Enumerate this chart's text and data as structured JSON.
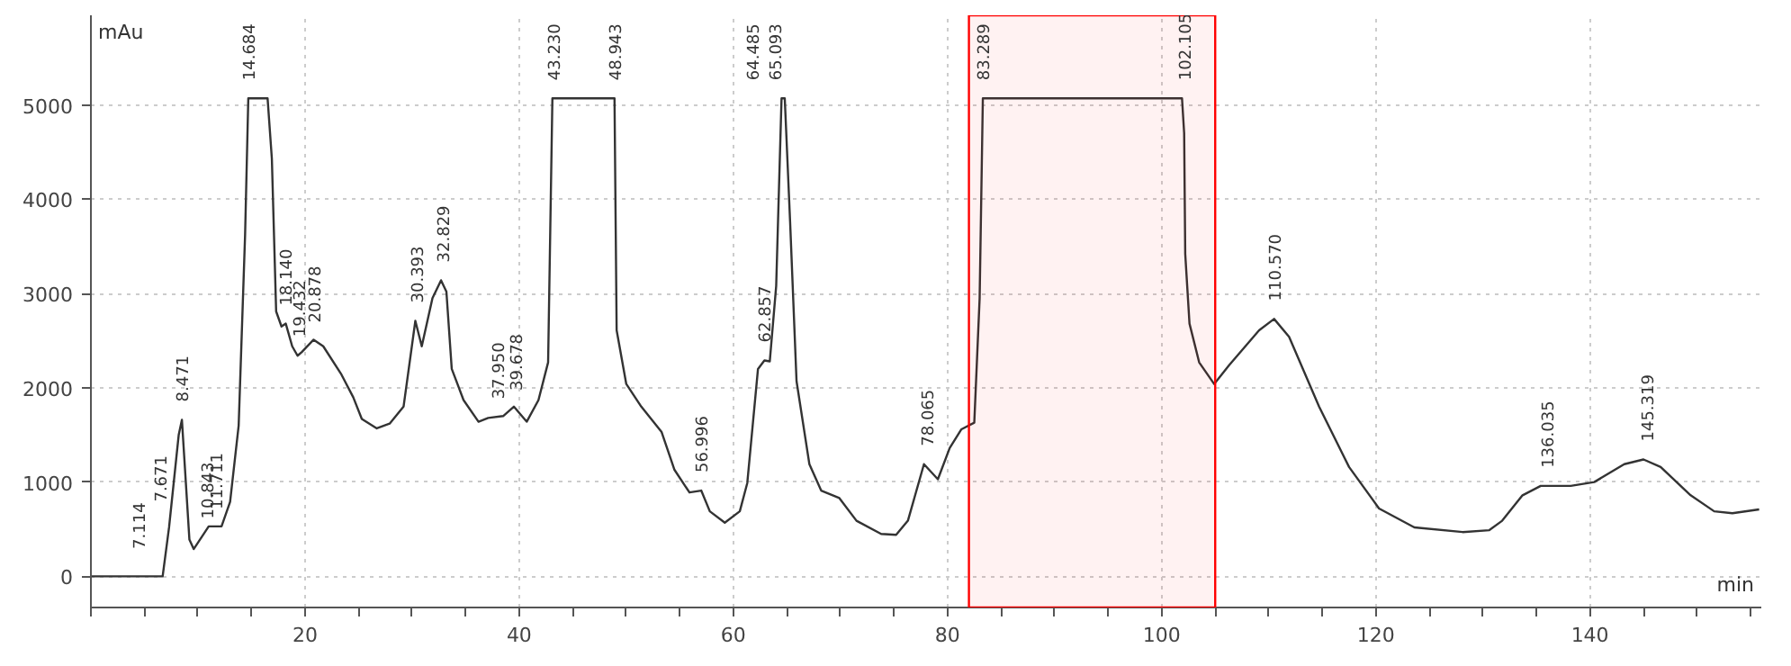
{
  "chart_data": {
    "type": "line",
    "xlabel": "min",
    "ylabel": "mAu",
    "xlim": [
      0,
      156
    ],
    "ylim": [
      -330,
      5950
    ],
    "xticks": [
      {
        "value": 0,
        "label": null
      },
      {
        "value": 5,
        "label": null
      },
      {
        "value": 10,
        "label": null
      },
      {
        "value": 15,
        "label": null
      },
      20,
      {
        "value": 25,
        "label": null
      },
      {
        "value": 30,
        "label": null
      },
      {
        "value": 35,
        "label": null
      },
      40,
      {
        "value": 45,
        "label": null
      },
      {
        "value": 50,
        "label": null
      },
      {
        "value": 55,
        "label": null
      },
      60,
      {
        "value": 65,
        "label": null
      },
      {
        "value": 70,
        "label": null
      },
      {
        "value": 75,
        "label": null
      },
      80,
      {
        "value": 85,
        "label": null
      },
      {
        "value": 90,
        "label": null
      },
      {
        "value": 95,
        "label": null
      },
      100,
      {
        "value": 105,
        "label": null
      },
      {
        "value": 110,
        "label": null
      },
      {
        "value": 115,
        "label": null
      },
      120,
      {
        "value": 125,
        "label": null
      },
      {
        "value": 130,
        "label": null
      },
      {
        "value": 135,
        "label": null
      },
      140,
      {
        "value": 145,
        "label": null
      },
      {
        "value": 150,
        "label": null
      },
      {
        "value": 155,
        "label": null
      }
    ],
    "yticks": [
      0,
      1000,
      2000,
      3000,
      4000,
      5000
    ],
    "grid": true,
    "marker": "none",
    "line_style": "solid",
    "series": [
      {
        "color": "#333333",
        "x": [
          0,
          6.7,
          7.3,
          8.2,
          8.5,
          9.2,
          9.6,
          11.0,
          12.2,
          13.0,
          13.8,
          14.4,
          14.7,
          16.5,
          16.9,
          17.3,
          17.8,
          18.2,
          18.8,
          19.3,
          19.7,
          20.8,
          21.7,
          23.4,
          24.5,
          25.3,
          26.7,
          27.9,
          29.2,
          30.3,
          30.9,
          31.9,
          32.7,
          33.2,
          33.7,
          34.8,
          36.2,
          37.1,
          38.5,
          39.5,
          40.7,
          41.8,
          42.7,
          43.1,
          48.9,
          49.1,
          50.0,
          51.4,
          53.3,
          54.5,
          55.9,
          57.0,
          57.8,
          59.2,
          60.6,
          61.3,
          62.3,
          62.9,
          63.4,
          64.0,
          64.5,
          64.8,
          65.3,
          65.9,
          67.1,
          68.2,
          69.9,
          71.5,
          73.8,
          75.2,
          76.3,
          77.8,
          79.1,
          80.2,
          81.3,
          82.5,
          83.0,
          83.3,
          101.9,
          102.1,
          102.2,
          102.6,
          103.5,
          104.9,
          106.3,
          109.1,
          110.5,
          111.9,
          114.7,
          117.5,
          120.3,
          123.6,
          128.1,
          130.6,
          131.8,
          133.7,
          135.4,
          138.2,
          140.4,
          143.2,
          145.0,
          146.6,
          149.4,
          151.6,
          153.3,
          155.8
        ],
        "values": [
          0,
          0,
          520,
          1500,
          1660,
          390,
          290,
          530,
          530,
          790,
          1600,
          3620,
          5070,
          5070,
          4430,
          2810,
          2650,
          2680,
          2440,
          2340,
          2380,
          2510,
          2440,
          2140,
          1900,
          1670,
          1570,
          1620,
          1800,
          2710,
          2440,
          2950,
          3140,
          3020,
          2200,
          1870,
          1640,
          1680,
          1700,
          1800,
          1640,
          1870,
          2270,
          5070,
          5070,
          2610,
          2040,
          1800,
          1530,
          1130,
          890,
          910,
          690,
          570,
          690,
          990,
          2200,
          2290,
          2280,
          3080,
          5070,
          5070,
          3760,
          2070,
          1190,
          910,
          830,
          590,
          450,
          440,
          590,
          1190,
          1030,
          1360,
          1560,
          1630,
          2950,
          5070,
          5070,
          4700,
          3420,
          2680,
          2270,
          2040,
          2240,
          2610,
          2730,
          2540,
          1800,
          1160,
          720,
          520,
          470,
          490,
          590,
          860,
          960,
          960,
          1000,
          1190,
          1240,
          1160,
          860,
          690,
          670,
          710
        ]
      }
    ],
    "bands": [
      {
        "axis": "x",
        "from": 82,
        "to": 105,
        "color": "#ff0000"
      }
    ],
    "annotations": [
      {
        "text": "7.114",
        "x": 7.114,
        "y": 100
      },
      {
        "text": "7.671",
        "x": 7.671,
        "y": 600
      },
      {
        "text": "8.471",
        "x": 8.471,
        "y": 1660
      },
      {
        "text": "10.843",
        "x": 10.843,
        "y": 420
      },
      {
        "text": "11.711",
        "x": 11.711,
        "y": 520
      },
      {
        "text": "14.684",
        "x": 14.684,
        "y": 5070
      },
      {
        "text": "18.140",
        "x": 18.14,
        "y": 2680
      },
      {
        "text": "19.432",
        "x": 19.432,
        "y": 2350
      },
      {
        "text": "20.878",
        "x": 20.878,
        "y": 2500
      },
      {
        "text": "30.393",
        "x": 30.393,
        "y": 2710
      },
      {
        "text": "32.829",
        "x": 32.829,
        "y": 3140
      },
      {
        "text": "37.950",
        "x": 37.95,
        "y": 1690
      },
      {
        "text": "39.678",
        "x": 39.678,
        "y": 1780
      },
      {
        "text": "43.230",
        "x": 43.23,
        "y": 5070
      },
      {
        "text": "48.943",
        "x": 48.943,
        "y": 5070
      },
      {
        "text": "56.996",
        "x": 56.996,
        "y": 910
      },
      {
        "text": "62.857",
        "x": 62.857,
        "y": 2290
      },
      {
        "text": "64.485",
        "x": 64.485,
        "y": 5070
      },
      {
        "text": "65.093",
        "x": 65.093,
        "y": 5070
      },
      {
        "text": "78.065",
        "x": 78.065,
        "y": 1190
      },
      {
        "text": "83.289",
        "x": 83.289,
        "y": 5070
      },
      {
        "text": "102.105",
        "x": 102.105,
        "y": 5070
      },
      {
        "text": "110.570",
        "x": 110.57,
        "y": 2730
      },
      {
        "text": "136.035",
        "x": 136.035,
        "y": 960
      },
      {
        "text": "145.319",
        "x": 145.319,
        "y": 1240
      }
    ]
  }
}
